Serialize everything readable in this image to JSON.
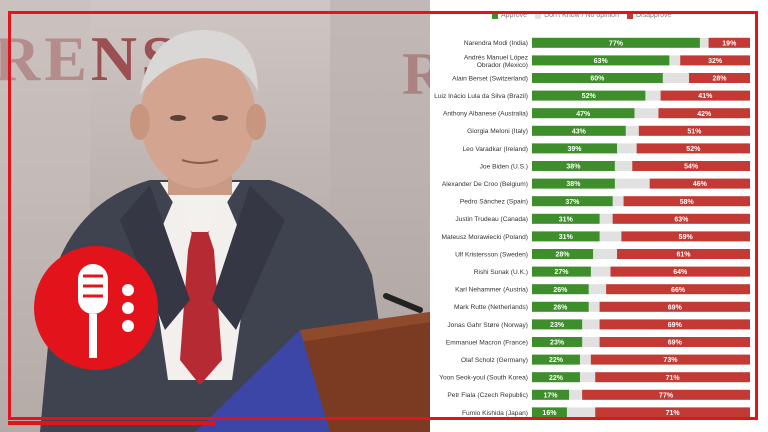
{
  "wall": {
    "left_text": "RENS",
    "right_text": "R"
  },
  "chart_data": {
    "type": "bar",
    "orientation": "horizontal",
    "stacked": true,
    "colors": {
      "approve": "#3e8e2b",
      "neutral": "#e1e1e1",
      "disapprove": "#c23a33"
    },
    "legend": [
      "Approve",
      "Don't Know / No opinion",
      "Disapprove"
    ],
    "legend_position": "top",
    "categories": [
      "Narendra Modi (India)",
      "Andrés Manuel López Obrador (Mexico)",
      "Alain Berset (Switzerland)",
      "Luiz Inácio Lula da Silva (Brazil)",
      "Anthony Albanese (Australia)",
      "Giorgia Meloni (Italy)",
      "Leo Varadkar (Ireland)",
      "Joe Biden (U.S.)",
      "Alexander De Croo (Belgium)",
      "Pedro Sánchez (Spain)",
      "Justin Trudeau (Canada)",
      "Mateusz Morawiecki (Poland)",
      "Ulf Kristersson (Sweden)",
      "Rishi Sunak (U.K.)",
      "Karl Nehammer (Austria)",
      "Mark Rutte (Netherlands)",
      "Jonas Gahr Støre (Norway)",
      "Emmanuel Macron (France)",
      "Olaf Scholz (Germany)",
      "Yoon Seok-youl (South Korea)",
      "Petr Fiala (Czech Republic)",
      "Fumio Kishida (Japan)"
    ],
    "series": [
      {
        "name": "Approve",
        "values": [
          77,
          63,
          60,
          52,
          47,
          43,
          39,
          38,
          38,
          37,
          31,
          31,
          28,
          27,
          26,
          26,
          23,
          23,
          22,
          22,
          17,
          16
        ]
      },
      {
        "name": "Disapprove",
        "values": [
          19,
          32,
          28,
          41,
          42,
          51,
          52,
          54,
          46,
          58,
          63,
          59,
          61,
          64,
          66,
          69,
          69,
          69,
          73,
          71,
          77,
          71
        ]
      }
    ],
    "value_labels": {
      "approve": [
        "77%",
        "63%",
        "60%",
        "52%",
        "47%",
        "43%",
        "39%",
        "38%",
        "38%",
        "37%",
        "31%",
        "31%",
        "28%",
        "27%",
        "26%",
        "26%",
        "23%",
        "23%",
        "22%",
        "22%",
        "17%",
        "16%"
      ],
      "disapprove": [
        "19%",
        "32%",
        "28%",
        "41%",
        "42%",
        "51%",
        "52%",
        "54%",
        "46%",
        "58%",
        "63%",
        "59%",
        "61%",
        "64%",
        "66%",
        "69%",
        "69%",
        "69%",
        "73%",
        "71%",
        "77%",
        "71%"
      ]
    },
    "xlim": [
      0,
      100
    ]
  }
}
